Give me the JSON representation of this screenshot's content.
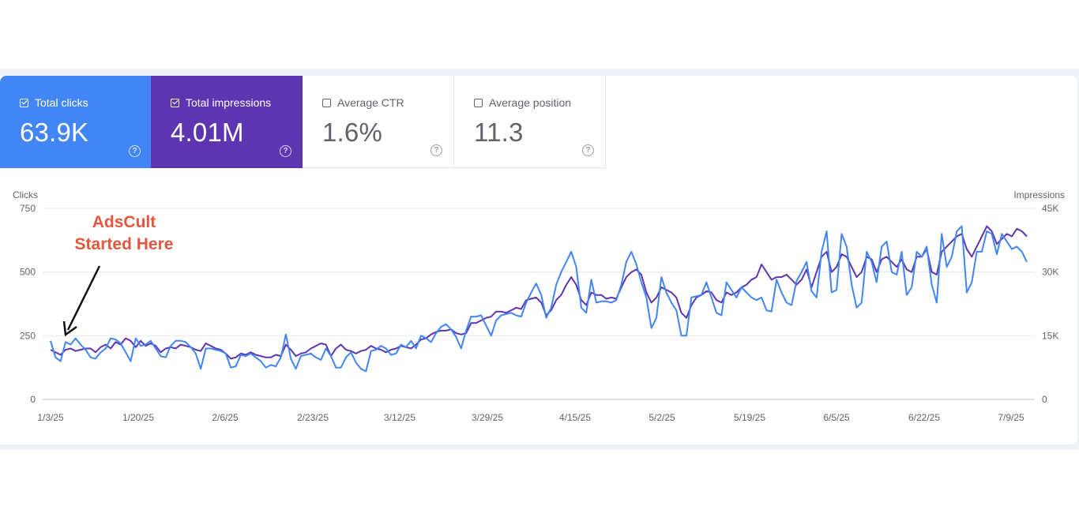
{
  "cards": [
    {
      "label": "Total clicks",
      "value": "63.9K",
      "checked": true
    },
    {
      "label": "Total impressions",
      "value": "4.01M",
      "checked": true
    },
    {
      "label": "Average CTR",
      "value": "1.6%",
      "checked": false
    },
    {
      "label": "Average position",
      "value": "11.3",
      "checked": false
    }
  ],
  "help_glyph": "?",
  "annotation": {
    "line1": "AdsCult",
    "line2": "Started Here"
  },
  "colors": {
    "clicks": "#4285f4",
    "impressions": "#5e35b1",
    "annotation": "#e4573d"
  },
  "chart_data": {
    "type": "line",
    "left_axis": {
      "title": "Clicks",
      "ticks": [
        "750",
        "500",
        "250",
        "0"
      ],
      "range": [
        0,
        750
      ]
    },
    "right_axis": {
      "title": "Impressions",
      "ticks": [
        "45K",
        "30K",
        "15K",
        "0"
      ],
      "range": [
        0,
        45000
      ]
    },
    "x_ticks": [
      "1/3/25",
      "1/20/25",
      "2/6/25",
      "2/23/25",
      "3/12/25",
      "3/29/25",
      "4/15/25",
      "5/2/25",
      "5/19/25",
      "6/5/25",
      "6/22/25",
      "7/9/25"
    ],
    "grid": true,
    "series": [
      {
        "name": "Total clicks",
        "axis": "left",
        "values": [
          230,
          165,
          150,
          225,
          215,
          240,
          215,
          195,
          165,
          160,
          185,
          200,
          240,
          235,
          220,
          185,
          150,
          240,
          210,
          215,
          230,
          200,
          170,
          165,
          210,
          230,
          230,
          225,
          205,
          180,
          120,
          200,
          200,
          195,
          190,
          180,
          125,
          130,
          175,
          170,
          180,
          165,
          150,
          125,
          135,
          130,
          165,
          255,
          160,
          120,
          170,
          175,
          180,
          165,
          155,
          200,
          170,
          125,
          125,
          165,
          185,
          145,
          120,
          110,
          190,
          195,
          210,
          200,
          175,
          180,
          215,
          205,
          230,
          200,
          250,
          240,
          225,
          260,
          285,
          295,
          275,
          245,
          200,
          270,
          325,
          325,
          330,
          290,
          250,
          310,
          330,
          335,
          340,
          330,
          325,
          380,
          420,
          455,
          410,
          320,
          360,
          450,
          500,
          540,
          580,
          520,
          360,
          340,
          470,
          380,
          385,
          385,
          380,
          390,
          450,
          540,
          580,
          530,
          460,
          400,
          280,
          320,
          480,
          420,
          380,
          350,
          250,
          250,
          400,
          405,
          410,
          460,
          400,
          340,
          330,
          460,
          430,
          400,
          440,
          420,
          400,
          390,
          400,
          350,
          345,
          470,
          420,
          380,
          370,
          465,
          500,
          540,
          425,
          400,
          580,
          660,
          420,
          430,
          650,
          600,
          450,
          360,
          380,
          580,
          540,
          460,
          600,
          620,
          500,
          490,
          580,
          410,
          440,
          580,
          560,
          600,
          450,
          380,
          650,
          520,
          560,
          660,
          680,
          420,
          460,
          580,
          580,
          660,
          650,
          570,
          650,
          620,
          590,
          600,
          580,
          540
        ]
      },
      {
        "name": "Total impressions",
        "axis": "left",
        "values": [
          195,
          185,
          175,
          195,
          200,
          190,
          195,
          200,
          200,
          185,
          205,
          215,
          200,
          225,
          215,
          240,
          230,
          205,
          230,
          210,
          220,
          210,
          185,
          200,
          205,
          200,
          215,
          210,
          205,
          195,
          190,
          220,
          210,
          200,
          195,
          180,
          160,
          165,
          180,
          175,
          185,
          175,
          170,
          165,
          165,
          175,
          170,
          215,
          195,
          170,
          180,
          185,
          200,
          210,
          220,
          215,
          170,
          200,
          215,
          195,
          190,
          180,
          190,
          195,
          210,
          200,
          195,
          185,
          195,
          200,
          210,
          205,
          200,
          215,
          235,
          240,
          255,
          265,
          270,
          270,
          275,
          260,
          255,
          260,
          300,
          300,
          310,
          320,
          325,
          345,
          345,
          340,
          350,
          360,
          355,
          390,
          395,
          400,
          380,
          330,
          350,
          390,
          410,
          450,
          480,
          450,
          390,
          370,
          420,
          410,
          410,
          395,
          400,
          395,
          440,
          480,
          500,
          510,
          490,
          420,
          380,
          400,
          440,
          430,
          420,
          400,
          340,
          320,
          370,
          400,
          410,
          425,
          420,
          390,
          380,
          420,
          410,
          420,
          440,
          450,
          470,
          480,
          530,
          500,
          470,
          480,
          480,
          490,
          470,
          450,
          470,
          510,
          440,
          500,
          560,
          580,
          500,
          520,
          570,
          560,
          520,
          480,
          500,
          560,
          550,
          500,
          550,
          560,
          540,
          520,
          550,
          510,
          500,
          560,
          560,
          590,
          500,
          490,
          580,
          600,
          620,
          640,
          650,
          590,
          560,
          600,
          640,
          680,
          660,
          610,
          630,
          650,
          640,
          670,
          660,
          640
        ]
      }
    ]
  }
}
